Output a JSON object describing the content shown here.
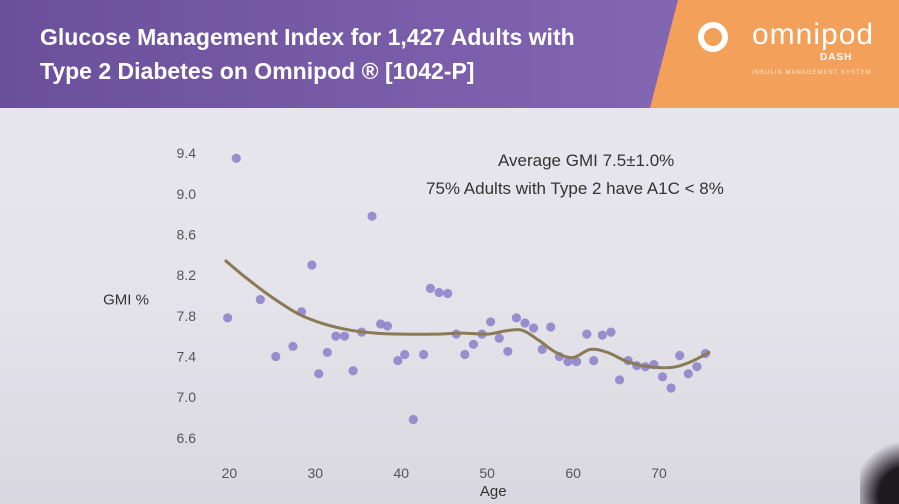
{
  "slide": {
    "title": "Glucose Management Index for 1,427 Adults with\nType 2 Diabetes on Omnipod ® [1042-P]",
    "logo": {
      "brand": "omnipod",
      "sub": "DASH",
      "tagline": "INSULIN MANAGEMENT SYSTEM"
    }
  },
  "colors": {
    "header": "#7a5ea9",
    "logo_panel": "#f2a05a",
    "point": "#8b7fc9",
    "trend": "#8a7a55"
  },
  "chart_data": {
    "type": "scatter",
    "title": "",
    "xlabel": "Age",
    "ylabel": "GMI %",
    "xlim": [
      16,
      80
    ],
    "ylim": [
      6.5,
      9.5
    ],
    "xticks": [
      "20",
      "30",
      "40",
      "50",
      "60",
      "70"
    ],
    "yticks": [
      "6.6",
      "7.0",
      "7.4",
      "7.8",
      "8.2",
      "8.6",
      "9.0",
      "9.4"
    ],
    "annotations": [
      "Average GMI 7.5±1.0%",
      "75% Adults with Type 2 have A1C < 8%"
    ],
    "points": [
      {
        "x": 19.8,
        "y": 7.78
      },
      {
        "x": 20.8,
        "y": 9.35
      },
      {
        "x": 23.6,
        "y": 7.96
      },
      {
        "x": 25.4,
        "y": 7.4
      },
      {
        "x": 27.4,
        "y": 7.5
      },
      {
        "x": 28.4,
        "y": 7.84
      },
      {
        "x": 29.6,
        "y": 8.3
      },
      {
        "x": 30.4,
        "y": 7.23
      },
      {
        "x": 31.4,
        "y": 7.44
      },
      {
        "x": 32.4,
        "y": 7.6
      },
      {
        "x": 33.4,
        "y": 7.6
      },
      {
        "x": 34.4,
        "y": 7.26
      },
      {
        "x": 35.4,
        "y": 7.64
      },
      {
        "x": 36.6,
        "y": 8.78
      },
      {
        "x": 37.6,
        "y": 7.72
      },
      {
        "x": 38.4,
        "y": 7.7
      },
      {
        "x": 39.6,
        "y": 7.36
      },
      {
        "x": 40.4,
        "y": 7.42
      },
      {
        "x": 41.4,
        "y": 6.78
      },
      {
        "x": 42.6,
        "y": 7.42
      },
      {
        "x": 43.4,
        "y": 8.07
      },
      {
        "x": 44.4,
        "y": 8.03
      },
      {
        "x": 45.4,
        "y": 8.02
      },
      {
        "x": 46.4,
        "y": 7.62
      },
      {
        "x": 47.4,
        "y": 7.42
      },
      {
        "x": 48.4,
        "y": 7.52
      },
      {
        "x": 49.4,
        "y": 7.62
      },
      {
        "x": 50.4,
        "y": 7.74
      },
      {
        "x": 51.4,
        "y": 7.58
      },
      {
        "x": 52.4,
        "y": 7.45
      },
      {
        "x": 53.4,
        "y": 7.78
      },
      {
        "x": 54.4,
        "y": 7.73
      },
      {
        "x": 55.4,
        "y": 7.68
      },
      {
        "x": 56.4,
        "y": 7.47
      },
      {
        "x": 57.4,
        "y": 7.69
      },
      {
        "x": 58.4,
        "y": 7.4
      },
      {
        "x": 59.4,
        "y": 7.35
      },
      {
        "x": 60.4,
        "y": 7.35
      },
      {
        "x": 61.6,
        "y": 7.62
      },
      {
        "x": 62.4,
        "y": 7.36
      },
      {
        "x": 63.4,
        "y": 7.61
      },
      {
        "x": 64.4,
        "y": 7.64
      },
      {
        "x": 65.4,
        "y": 7.17
      },
      {
        "x": 66.4,
        "y": 7.36
      },
      {
        "x": 67.4,
        "y": 7.31
      },
      {
        "x": 68.4,
        "y": 7.3
      },
      {
        "x": 69.4,
        "y": 7.32
      },
      {
        "x": 70.4,
        "y": 7.2
      },
      {
        "x": 71.4,
        "y": 7.09
      },
      {
        "x": 72.4,
        "y": 7.41
      },
      {
        "x": 73.4,
        "y": 7.23
      },
      {
        "x": 74.4,
        "y": 7.3
      },
      {
        "x": 75.4,
        "y": 7.43
      }
    ],
    "trendline": [
      {
        "x": 19.6,
        "y": 8.34
      },
      {
        "x": 22.0,
        "y": 8.17
      },
      {
        "x": 25.0,
        "y": 7.98
      },
      {
        "x": 28.0,
        "y": 7.82
      },
      {
        "x": 31.0,
        "y": 7.72
      },
      {
        "x": 34.0,
        "y": 7.66
      },
      {
        "x": 37.0,
        "y": 7.63
      },
      {
        "x": 40.0,
        "y": 7.62
      },
      {
        "x": 44.0,
        "y": 7.62
      },
      {
        "x": 47.0,
        "y": 7.63
      },
      {
        "x": 50.0,
        "y": 7.62
      },
      {
        "x": 52.0,
        "y": 7.65
      },
      {
        "x": 54.0,
        "y": 7.66
      },
      {
        "x": 56.0,
        "y": 7.56
      },
      {
        "x": 58.0,
        "y": 7.44
      },
      {
        "x": 60.0,
        "y": 7.39
      },
      {
        "x": 62.0,
        "y": 7.47
      },
      {
        "x": 64.0,
        "y": 7.44
      },
      {
        "x": 66.0,
        "y": 7.36
      },
      {
        "x": 68.0,
        "y": 7.31
      },
      {
        "x": 70.0,
        "y": 7.29
      },
      {
        "x": 72.0,
        "y": 7.3
      },
      {
        "x": 74.0,
        "y": 7.36
      },
      {
        "x": 75.8,
        "y": 7.44
      }
    ]
  }
}
